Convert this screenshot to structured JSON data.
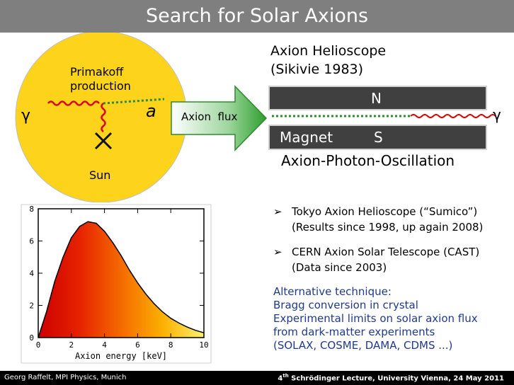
{
  "slide": {
    "title": "Search for Solar Axions",
    "footer_left": "Georg Raffelt, MPI Physics, Munich",
    "footer_right_pre": "4",
    "footer_right_sup": "th",
    "footer_right_post": " Schrödinger Lecture, University Vienna, 24 May 2011"
  },
  "sun_diagram": {
    "process_label_line1": "Primakoff",
    "process_label_line2": "production",
    "photon_symbol": "γ",
    "axion_symbol": "a",
    "sun_label": "Sun",
    "sun_color": "#fdd31c"
  },
  "flux_arrow": {
    "label": "Axion  flux",
    "color": "#2e9e2e"
  },
  "helioscope": {
    "title_line1": "Axion Helioscope",
    "title_line2": "(Sikivie 1983)",
    "north_label": "N",
    "south_label": "S",
    "magnet_label": "Magnet",
    "photon_symbol": "γ",
    "oscillation_label": "Axion-Photon-Oscillation"
  },
  "experiments": [
    {
      "line1": "Tokyo Axion Helioscope (“Sumico”)",
      "line2": "(Results since 1998, up again 2008)"
    },
    {
      "line1": "CERN Axion Solar Telescope (CAST)",
      "line2": "(Data since 2003)"
    }
  ],
  "alternative": {
    "lines": [
      "Alternative technique:",
      "Bragg conversion in crystal",
      "Experimental limits on solar axion flux",
      "from dark-matter experiments",
      "(SOLAX, COSME, DAMA, CDMS ...)"
    ]
  },
  "chart_data": {
    "type": "area",
    "xlabel": "Axion energy [keV]",
    "xlim": [
      0,
      10
    ],
    "ylim": [
      0,
      8
    ],
    "xticks": [
      0,
      2,
      4,
      6,
      8,
      10
    ],
    "yticks": [
      0,
      2,
      4,
      6,
      8
    ],
    "x": [
      0,
      0.5,
      1,
      1.5,
      2,
      2.5,
      3,
      3.5,
      4,
      4.5,
      5,
      5.5,
      6,
      6.5,
      7,
      7.5,
      8,
      8.5,
      9,
      9.5,
      10
    ],
    "y": [
      0,
      1.6,
      3.5,
      5.0,
      6.2,
      6.9,
      7.2,
      7.1,
      6.6,
      5.9,
      5.1,
      4.2,
      3.4,
      2.7,
      2.1,
      1.6,
      1.2,
      0.9,
      0.65,
      0.45,
      0.3
    ]
  }
}
